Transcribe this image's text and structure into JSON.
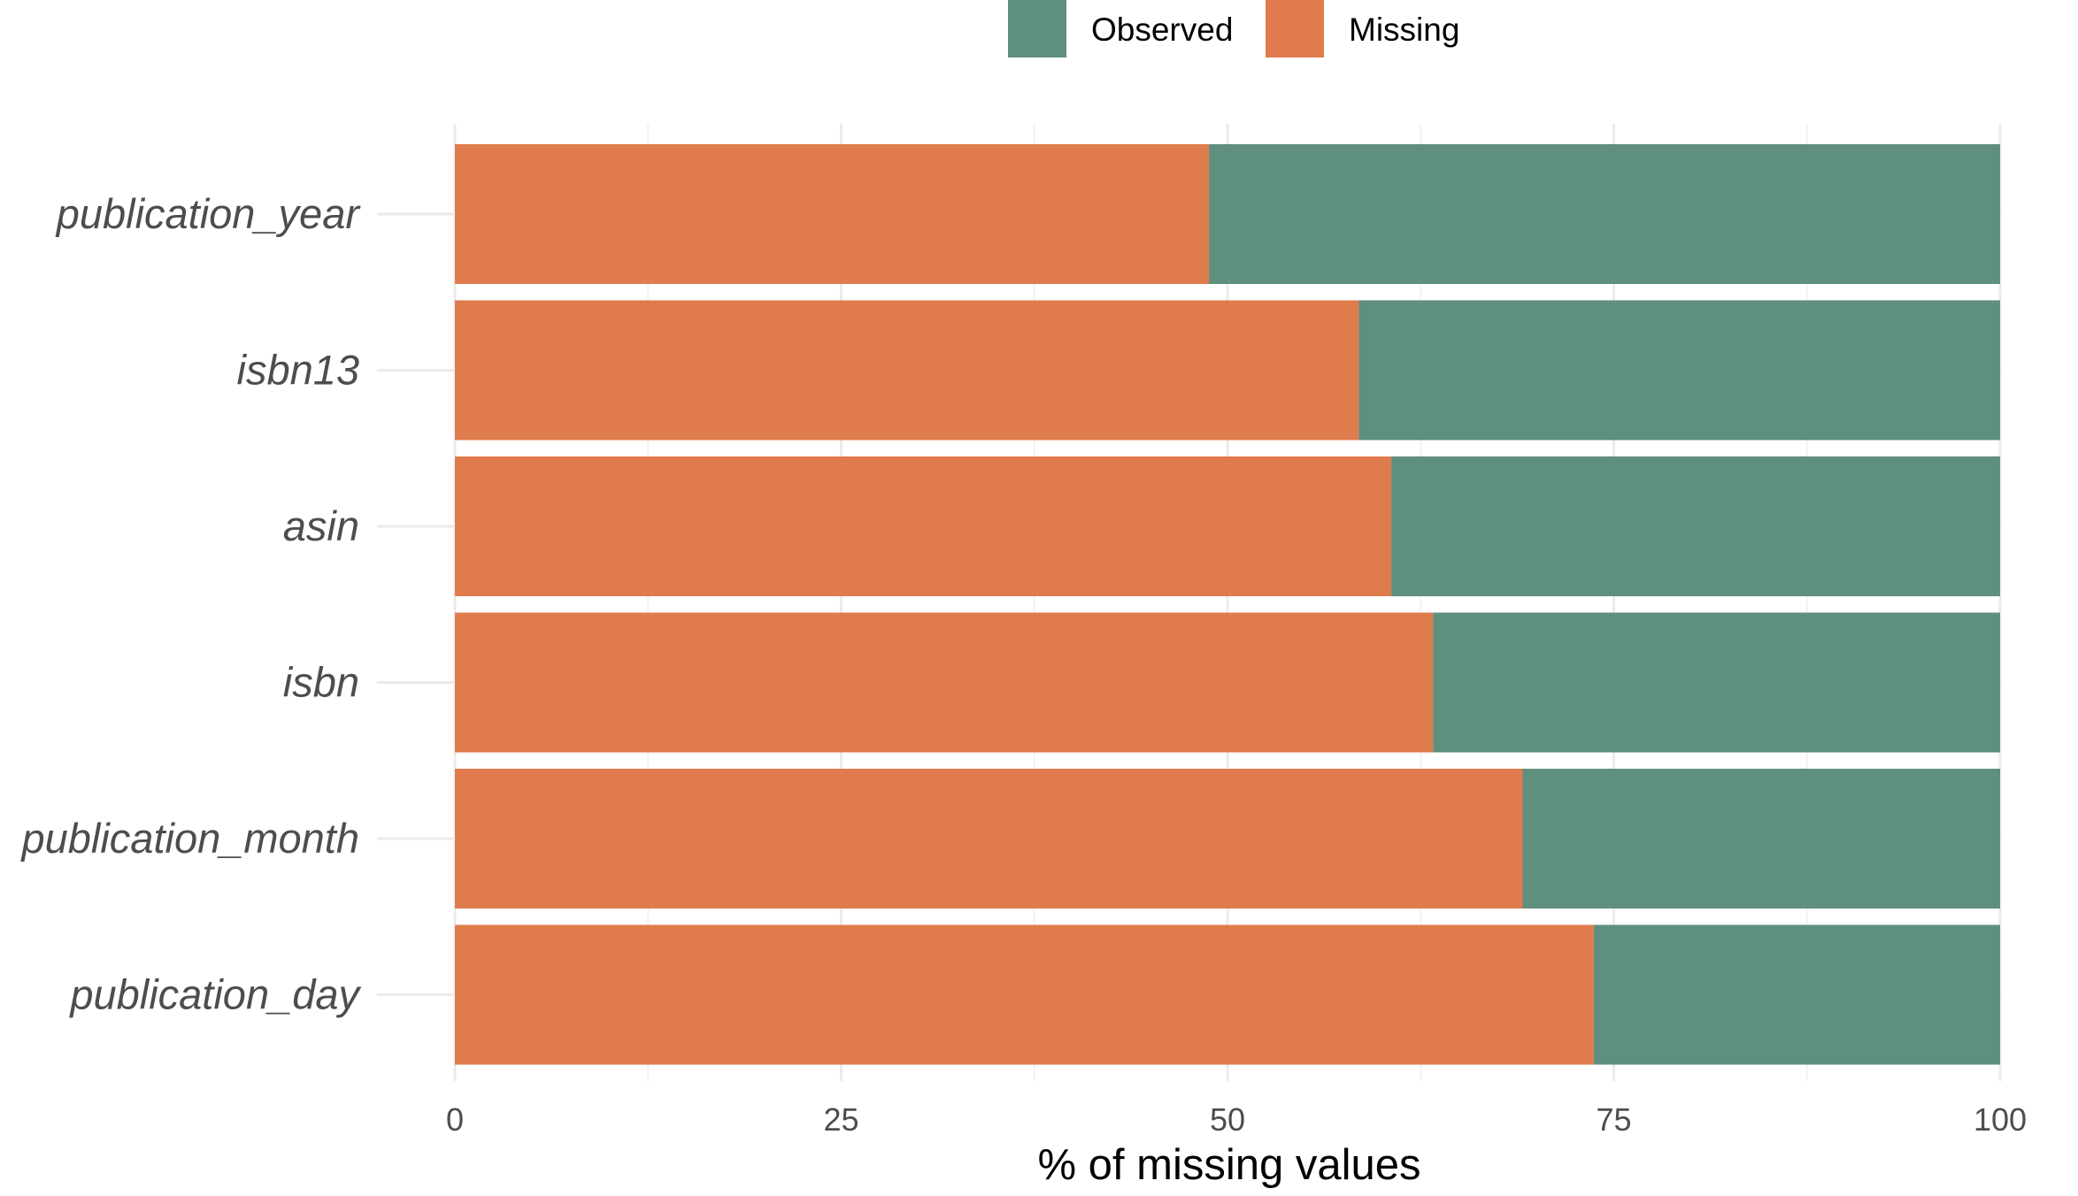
{
  "chart_data": {
    "type": "bar",
    "orientation": "horizontal",
    "stacked": true,
    "categories": [
      "publication_year",
      "isbn13",
      "asin",
      "isbn",
      "publication_month",
      "publication_day"
    ],
    "series": [
      {
        "name": "Missing",
        "color": "#e07b4d",
        "values": [
          48.8,
          58.5,
          60.6,
          63.3,
          69.1,
          73.7
        ]
      },
      {
        "name": "Observed",
        "color": "#5f8f7d",
        "values": [
          51.2,
          41.5,
          39.4,
          36.7,
          30.9,
          26.3
        ]
      }
    ],
    "xlabel": "% of missing values",
    "ylabel": "",
    "xlim": [
      0,
      100
    ],
    "xticks": [
      0,
      25,
      50,
      75,
      100
    ],
    "grid": true,
    "legend": {
      "position": "top",
      "entries": [
        {
          "label": "Observed",
          "color": "#5f8f7d"
        },
        {
          "label": "Missing",
          "color": "#e07b4d"
        }
      ]
    }
  }
}
